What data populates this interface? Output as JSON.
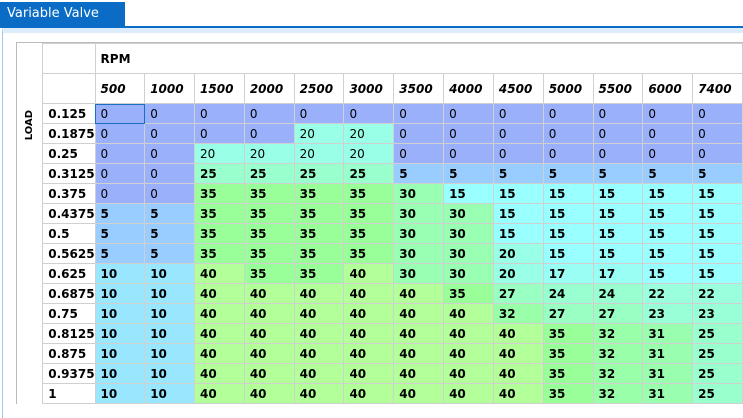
{
  "tab": {
    "title": "Variable Valve Timing"
  },
  "table": {
    "x_axis_label": "RPM",
    "y_axis_label": "LOAD",
    "rpm": [
      "500",
      "1000",
      "1500",
      "2000",
      "2500",
      "3000",
      "3500",
      "4000",
      "4500",
      "5000",
      "5500",
      "6000",
      "7400"
    ],
    "load": [
      "0.125",
      "0.1875",
      "0.25",
      "0.3125",
      "0.375",
      "0.4375",
      "0.5",
      "0.5625",
      "0.625",
      "0.6875",
      "0.75",
      "0.8125",
      "0.875",
      "0.9375",
      "1"
    ],
    "values": [
      [
        0,
        0,
        0,
        0,
        0,
        0,
        0,
        0,
        0,
        0,
        0,
        0,
        0
      ],
      [
        0,
        0,
        0,
        0,
        20,
        20,
        0,
        0,
        0,
        0,
        0,
        0,
        0
      ],
      [
        0,
        0,
        20,
        20,
        20,
        20,
        0,
        0,
        0,
        0,
        0,
        0,
        0
      ],
      [
        0,
        0,
        25,
        25,
        25,
        25,
        5,
        5,
        5,
        5,
        5,
        5,
        5
      ],
      [
        0,
        0,
        35,
        35,
        35,
        35,
        30,
        15,
        15,
        15,
        15,
        15,
        15
      ],
      [
        5,
        5,
        35,
        35,
        35,
        35,
        30,
        30,
        15,
        15,
        15,
        15,
        15
      ],
      [
        5,
        5,
        35,
        35,
        35,
        35,
        30,
        30,
        15,
        15,
        15,
        15,
        15
      ],
      [
        5,
        5,
        35,
        35,
        35,
        35,
        30,
        30,
        20,
        15,
        15,
        15,
        15
      ],
      [
        10,
        10,
        40,
        35,
        35,
        40,
        30,
        30,
        20,
        17,
        17,
        15,
        15
      ],
      [
        10,
        10,
        40,
        40,
        40,
        40,
        40,
        35,
        27,
        24,
        24,
        22,
        22
      ],
      [
        10,
        10,
        40,
        40,
        40,
        40,
        40,
        40,
        32,
        27,
        27,
        23,
        23
      ],
      [
        10,
        10,
        40,
        40,
        40,
        40,
        40,
        40,
        40,
        35,
        32,
        31,
        25
      ],
      [
        10,
        10,
        40,
        40,
        40,
        40,
        40,
        40,
        40,
        35,
        32,
        31,
        25
      ],
      [
        10,
        10,
        40,
        40,
        40,
        40,
        40,
        40,
        40,
        35,
        32,
        31,
        25
      ],
      [
        10,
        10,
        40,
        40,
        40,
        40,
        40,
        40,
        40,
        35,
        32,
        31,
        25
      ]
    ],
    "selected_cell": "0.125 / 500"
  },
  "colors": {
    "accent": "#0a6cc4"
  }
}
